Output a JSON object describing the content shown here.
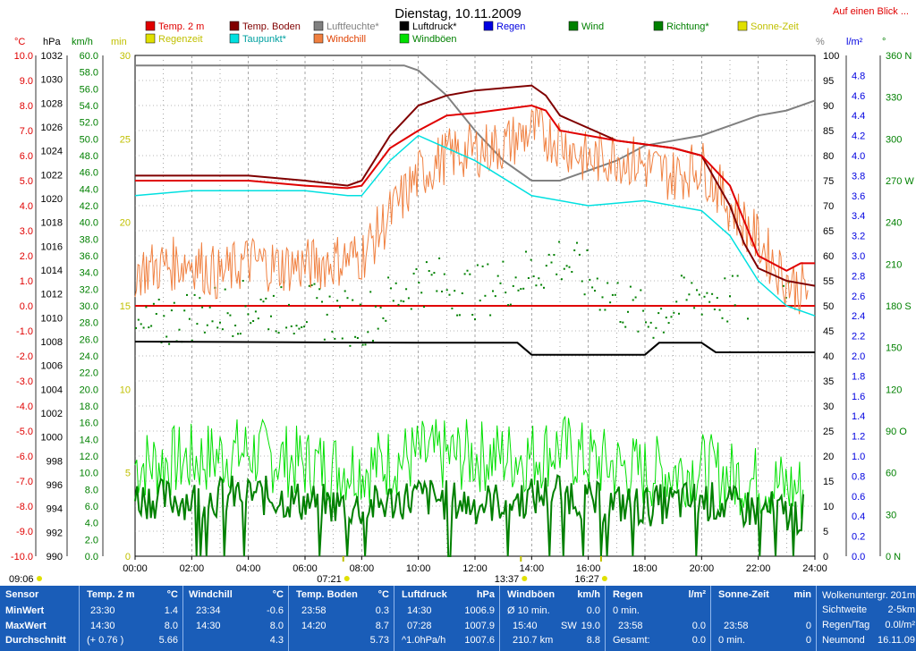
{
  "header": {
    "title": "Dienstag, 10.11.2009",
    "overview_link": "Auf einen Blick ..."
  },
  "colors": {
    "temp2m": "#e00000",
    "temp_boden": "#800000",
    "luftfeuchte": "#808080",
    "luftdruck": "#000000",
    "taupunkt": "#00e0e0",
    "windchill": "#f08040",
    "wind": "#008000",
    "windboeen": "#00e000",
    "richtung": "#008000",
    "regen": "#0000e0",
    "sonne": "#e0e000",
    "footer_bg": "#1a5db8"
  },
  "legend": [
    {
      "label": "Temp. 2 m",
      "color": "#e00000",
      "text_color": "#e00000"
    },
    {
      "label": "Temp. Boden",
      "color": "#800000",
      "text_color": "#800000"
    },
    {
      "label": "Luftfeuchte*",
      "color": "#808080",
      "text_color": "#808080"
    },
    {
      "label": "Luftdruck*",
      "color": "#000000",
      "text_color": "#000000"
    },
    {
      "label": "Regen",
      "color": "#0000e0",
      "text_color": "#0000e0"
    },
    {
      "label": "Wind",
      "color": "#008000",
      "text_color": "#008000"
    },
    {
      "label": "Richtung*",
      "color": "#008000",
      "text_color": "#008000"
    },
    {
      "label": "Sonne-Zeit",
      "color": "#e0e000",
      "text_color": "#c0c000"
    },
    {
      "label": "Regenzeit",
      "color": "#e0e000",
      "text_color": "#c0c000"
    },
    {
      "label": "Taupunkt*",
      "color": "#00e0e0",
      "text_color": "#00a0a0"
    },
    {
      "label": "Windchill",
      "color": "#f08040",
      "text_color": "#e04000"
    },
    {
      "label": "Windböen",
      "color": "#00e000",
      "text_color": "#008000"
    }
  ],
  "axis_units": {
    "temp": "°C",
    "hpa": "hPa",
    "kmh": "km/h",
    "min": "min",
    "pct": "%",
    "rain": "l/m²",
    "dir": "°"
  },
  "chart_data": {
    "type": "line",
    "x_unit": "hours",
    "xlim": [
      0,
      24
    ],
    "x_ticks": [
      "00:00",
      "02:00",
      "04:00",
      "06:00",
      "08:00",
      "10:00",
      "12:00",
      "14:00",
      "16:00",
      "18:00",
      "20:00",
      "22:00",
      "24:00"
    ],
    "axes": {
      "temp_c": {
        "min": -10,
        "max": 10,
        "step": 1,
        "ticks": [
          "-10.0",
          "-9.0",
          "-8.0",
          "-7.0",
          "-6.0",
          "-5.0",
          "-4.0",
          "-3.0",
          "-2.0",
          "-1.0",
          "0.0",
          "1.0",
          "2.0",
          "3.0",
          "4.0",
          "5.0",
          "6.0",
          "7.0",
          "8.0",
          "9.0",
          "10.0"
        ]
      },
      "pressure_hpa": {
        "min": 990,
        "max": 1032,
        "ticks": [
          "990",
          "992",
          "994",
          "996",
          "998",
          "1000",
          "1002",
          "1004",
          "1006",
          "1008",
          "1010",
          "1012",
          "1014",
          "1016",
          "1018",
          "1020",
          "1022",
          "1024",
          "1026",
          "1028",
          "1030",
          "1032"
        ]
      },
      "wind_kmh": {
        "min": 0,
        "max": 60,
        "ticks": [
          "0.0",
          "2.0",
          "4.0",
          "6.0",
          "8.0",
          "10.0",
          "12.0",
          "14.0",
          "16.0",
          "18.0",
          "20.0",
          "22.0",
          "24.0",
          "26.0",
          "28.0",
          "30.0",
          "32.0",
          "34.0",
          "36.0",
          "38.0",
          "40.0",
          "42.0",
          "44.0",
          "46.0",
          "48.0",
          "50.0",
          "52.0",
          "54.0",
          "56.0",
          "58.0",
          "60.0"
        ]
      },
      "sun_min": {
        "min": 0,
        "max": 30,
        "ticks": [
          "0",
          "5",
          "10",
          "15",
          "20",
          "25",
          "30"
        ]
      },
      "humidity_pct": {
        "min": 0,
        "max": 100,
        "ticks": [
          "0",
          "5",
          "10",
          "15",
          "20",
          "25",
          "30",
          "35",
          "40",
          "45",
          "50",
          "55",
          "60",
          "65",
          "70",
          "75",
          "80",
          "85",
          "90",
          "95",
          "100"
        ]
      },
      "rain_lm2": {
        "min": 0,
        "max": 5,
        "ticks": [
          "0.0",
          "0.2",
          "0.4",
          "0.6",
          "0.8",
          "1.0",
          "1.2",
          "1.4",
          "1.6",
          "1.8",
          "2.0",
          "2.2",
          "2.4",
          "2.6",
          "2.8",
          "3.0",
          "3.2",
          "3.4",
          "3.6",
          "3.8",
          "4.0",
          "4.2",
          "4.4",
          "4.6",
          "4.8"
        ]
      },
      "direction_deg": {
        "min": 0,
        "max": 360,
        "ticks": [
          "0 N",
          "30",
          "60",
          "90 O",
          "120",
          "150",
          "180 S",
          "210",
          "240",
          "270 W",
          "300",
          "330",
          "360 N"
        ]
      }
    },
    "series": [
      {
        "name": "Temp. 2 m",
        "axis": "temp_c",
        "x": [
          0,
          2,
          4,
          6,
          7.5,
          8,
          9,
          10,
          11,
          12,
          14,
          14.5,
          15,
          17,
          19,
          20,
          21,
          22,
          23,
          23.5,
          24
        ],
        "y": [
          5.0,
          5.0,
          5.0,
          4.8,
          4.7,
          4.8,
          6.3,
          7.0,
          7.6,
          7.7,
          8.0,
          7.8,
          7.0,
          6.6,
          6.3,
          6.0,
          4.8,
          2.0,
          1.4,
          1.7,
          1.7
        ]
      },
      {
        "name": "Temp. Boden",
        "axis": "temp_c",
        "x": [
          0,
          2,
          4,
          6,
          7.5,
          8,
          9,
          10,
          11,
          12,
          14,
          14.5,
          15,
          17,
          19,
          20,
          21,
          21.5,
          22,
          23,
          24
        ],
        "y": [
          5.2,
          5.2,
          5.2,
          5.0,
          4.8,
          5.0,
          6.8,
          8.0,
          8.4,
          8.6,
          8.8,
          8.4,
          7.6,
          6.6,
          6.3,
          6.0,
          4.0,
          2.5,
          1.5,
          1.0,
          0.8
        ]
      },
      {
        "name": "Taupunkt*",
        "axis": "temp_c",
        "x": [
          0,
          2,
          4,
          6,
          7.5,
          8,
          9,
          10,
          12,
          14,
          16,
          18,
          20,
          21,
          22,
          23,
          24
        ],
        "y": [
          4.4,
          4.6,
          4.6,
          4.6,
          4.4,
          4.4,
          5.8,
          6.8,
          5.8,
          4.4,
          4.0,
          4.2,
          3.8,
          2.8,
          1.0,
          0,
          -0.4
        ]
      },
      {
        "name": "Windchill",
        "axis": "temp_c",
        "x": [
          0,
          1,
          2,
          3,
          4,
          5,
          6,
          7,
          8,
          9,
          10,
          11,
          12,
          13,
          14,
          15,
          16,
          17,
          18,
          19,
          20,
          21,
          22,
          23,
          24
        ],
        "y": [
          1.4,
          1.6,
          1.8,
          1.2,
          1.8,
          1.6,
          1.6,
          1.8,
          2.0,
          3.6,
          5.2,
          6.0,
          6.2,
          6.4,
          7.0,
          6.6,
          5.8,
          6.0,
          5.6,
          5.2,
          5.6,
          4.0,
          2.6,
          1.0,
          0.4
        ]
      },
      {
        "name": "Luftfeuchte*",
        "axis": "humidity_pct",
        "x": [
          0,
          9.5,
          10,
          11,
          12,
          13,
          14,
          15,
          16,
          17,
          18,
          19,
          20,
          21,
          22,
          23,
          24
        ],
        "y": [
          98,
          98,
          97,
          92,
          85,
          79,
          75,
          75,
          77,
          79,
          82,
          83,
          84,
          86,
          88,
          89,
          91
        ]
      },
      {
        "name": "Luftdruck*",
        "axis": "pressure_hpa",
        "x": [
          0,
          10,
          13.5,
          14,
          18,
          18.5,
          20,
          20.5,
          24
        ],
        "y": [
          1008.0,
          1007.9,
          1007.9,
          1006.9,
          1006.9,
          1007.9,
          1007.9,
          1007.1,
          1007.1
        ]
      },
      {
        "name": "Richtung*",
        "axis": "direction_deg",
        "x": [
          0,
          2,
          4,
          6,
          8,
          10,
          12,
          14,
          15,
          16,
          18,
          20,
          22,
          23
        ],
        "y": [
          160,
          175,
          180,
          178,
          170,
          200,
          190,
          205,
          215,
          200,
          170,
          190,
          178,
          178
        ]
      },
      {
        "name": "Wind",
        "axis": "wind_kmh",
        "x": [
          0,
          2,
          4,
          6,
          8,
          10,
          12,
          14,
          15,
          16,
          18,
          20,
          21,
          23.5
        ],
        "y": [
          7.0,
          6.8,
          7.5,
          6.5,
          5.8,
          7.2,
          6.2,
          7.0,
          8.0,
          6.5,
          6.0,
          6.8,
          6.0,
          5.0
        ]
      },
      {
        "name": "Windböen",
        "axis": "wind_kmh",
        "x": [
          0,
          2,
          4,
          6,
          8,
          10,
          12,
          14,
          15,
          16,
          18,
          20,
          21,
          23.5
        ],
        "y": [
          11.0,
          11.5,
          12.5,
          11.0,
          10.5,
          12.0,
          12.0,
          12.0,
          13.0,
          11.5,
          10.0,
          10.5,
          9.5,
          8.0
        ]
      }
    ],
    "baseline": {
      "name": "0 °C",
      "axis": "temp_c",
      "value": 0.0
    },
    "time_markers": [
      {
        "label": "09:06",
        "x": 0
      },
      {
        "label": "07:21",
        "x": 7.35
      },
      {
        "label": "13:37",
        "x": 13.62
      },
      {
        "label": "16:27",
        "x": 16.45
      }
    ]
  },
  "footer": {
    "sensor": {
      "title": "Sensor",
      "rows": [
        "MinWert",
        "MaxWert",
        "Durchschnitt"
      ]
    },
    "temp2m": {
      "title": "Temp. 2 m",
      "unit": "°C",
      "rows": [
        [
          "23:30",
          "1.4"
        ],
        [
          "14:30",
          "8.0"
        ],
        [
          "(+ 0.76 )",
          "5.66"
        ]
      ]
    },
    "windchill": {
      "title": "Windchill",
      "unit": "°C",
      "rows": [
        [
          "23:34",
          "-0.6"
        ],
        [
          "14:30",
          "8.0"
        ],
        [
          "",
          "4.3"
        ]
      ]
    },
    "boden": {
      "title": "Temp. Boden",
      "unit": "°C",
      "rows": [
        [
          "23:58",
          "0.3"
        ],
        [
          "14:20",
          "8.7"
        ],
        [
          "",
          "5.73"
        ]
      ]
    },
    "luftdruck": {
      "title": "Luftdruck",
      "unit": "hPa",
      "rows": [
        [
          "14:30",
          "1006.9"
        ],
        [
          "07:28",
          "1007.9"
        ],
        [
          "^1.0hPa/h",
          "1007.6"
        ]
      ]
    },
    "windboeen": {
      "title": "Windböen",
      "unit": "km/h",
      "rows": [
        [
          "Ø 10 min.",
          "",
          "0.0"
        ],
        [
          "15:40",
          "SW",
          "19.0"
        ],
        [
          "210.7 km",
          "",
          "8.8"
        ]
      ]
    },
    "regen": {
      "title": "Regen",
      "unit": "l/m²",
      "rows": [
        [
          "0 min.",
          ""
        ],
        [
          "23:58",
          "0.0"
        ],
        [
          "Gesamt:",
          "0.0"
        ]
      ]
    },
    "sonne": {
      "title": "Sonne-Zeit",
      "unit": "min",
      "rows": [
        [
          "",
          ""
        ],
        [
          "23:58",
          "0"
        ],
        [
          "0 min.",
          "0"
        ]
      ]
    },
    "extra": {
      "rows": [
        [
          "Wolkenuntergr.",
          "201m"
        ],
        [
          "Sichtweite",
          "2-5km"
        ],
        [
          "Regen/Tag",
          "0.0l/m²"
        ],
        [
          "Neumond",
          "16.11.09"
        ]
      ]
    }
  }
}
